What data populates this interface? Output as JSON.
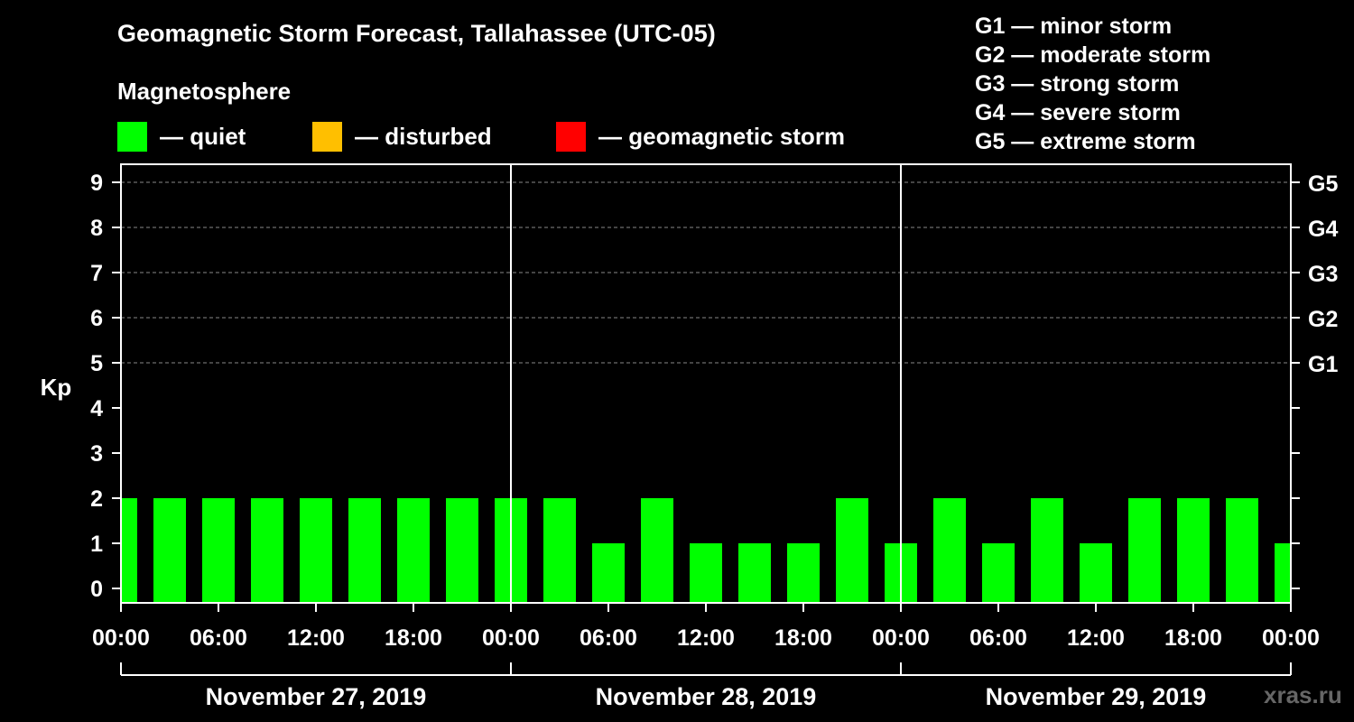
{
  "title": "Geomagnetic Storm Forecast, Tallahassee (UTC-05)",
  "magnetosphere_label": "Magnetosphere",
  "legend": [
    {
      "label": "— quiet",
      "color": "#00ff00"
    },
    {
      "label": "— disturbed",
      "color": "#ffbf00"
    },
    {
      "label": "— geomagnetic storm",
      "color": "#ff0000"
    }
  ],
  "g_legend": [
    "G1 — minor storm",
    "G2 — moderate storm",
    "G3 — strong storm",
    "G4 — severe storm",
    "G5 — extreme storm"
  ],
  "watermark": "xras.ru",
  "chart_data": {
    "type": "bar",
    "ylabel": "Kp",
    "ylim": [
      0,
      9
    ],
    "y_ticks": [
      "0",
      "1",
      "2",
      "3",
      "4",
      "5",
      "6",
      "7",
      "8",
      "9"
    ],
    "right_axis_labels": [
      {
        "kp": 5,
        "label": "G1"
      },
      {
        "kp": 6,
        "label": "G2"
      },
      {
        "kp": 7,
        "label": "G3"
      },
      {
        "kp": 8,
        "label": "G4"
      },
      {
        "kp": 9,
        "label": "G5"
      }
    ],
    "x_tick_labels": [
      "00:00",
      "06:00",
      "12:00",
      "18:00",
      "00:00",
      "06:00",
      "12:00",
      "18:00",
      "00:00",
      "06:00",
      "12:00",
      "18:00",
      "00:00"
    ],
    "x_range_hours": [
      0,
      72
    ],
    "days": [
      "November 27, 2019",
      "November 28, 2019",
      "November 29, 2019"
    ],
    "grid": "dashed horizontal lines at Kp 5-9",
    "bar_interval_hours": 3,
    "bar_start_hours": [
      0,
      2,
      5,
      8,
      11,
      14,
      17,
      20,
      23,
      26,
      29,
      32,
      35,
      38,
      41,
      44,
      47,
      50,
      53,
      56,
      59,
      62,
      65,
      68,
      71
    ],
    "bar_end_hours": [
      1,
      4,
      7,
      10,
      13,
      16,
      19,
      22,
      25,
      28,
      31,
      34,
      37,
      40,
      43,
      46,
      49,
      52,
      55,
      58,
      61,
      64,
      67,
      70,
      72
    ],
    "values": [
      2,
      2,
      2,
      2,
      2,
      2,
      2,
      2,
      2,
      2,
      1,
      2,
      1,
      1,
      1,
      2,
      1,
      2,
      1,
      2,
      1,
      2,
      2,
      2,
      1
    ],
    "status": "quiet",
    "bar_color": "#00ff00"
  }
}
